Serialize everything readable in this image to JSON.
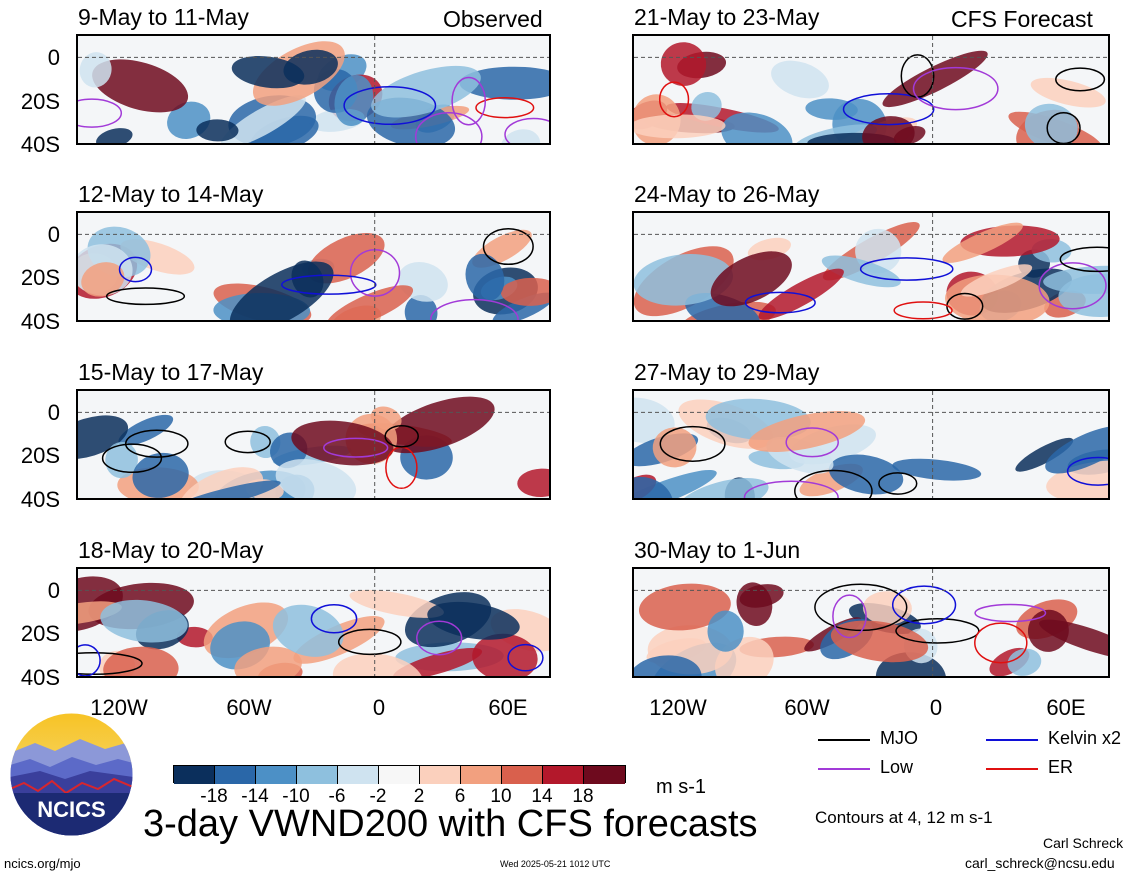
{
  "main_title": "3-day VWND200 with CFS forecasts",
  "observed_label": "Observed",
  "forecast_label": "CFS Forecast",
  "panels_left": [
    {
      "title": "9-May to 11-May"
    },
    {
      "title": "12-May to 14-May"
    },
    {
      "title": "15-May to 17-May"
    },
    {
      "title": "18-May to 20-May"
    }
  ],
  "panels_right": [
    {
      "title": "21-May to 23-May"
    },
    {
      "title": "24-May to 26-May"
    },
    {
      "title": "27-May to 29-May"
    },
    {
      "title": "30-May to 1-Jun"
    }
  ],
  "y_ticks": [
    "0",
    "20S",
    "40S"
  ],
  "x_ticks": [
    "120W",
    "60W",
    "0",
    "60E"
  ],
  "colorbar": {
    "unit": "m s-1",
    "labels": [
      "-18",
      "-14",
      "-10",
      "-6",
      "-2",
      "2",
      "6",
      "10",
      "14",
      "18"
    ],
    "colors": [
      "#0b2f5c",
      "#2a67a8",
      "#4c90c6",
      "#8ec0de",
      "#cfe3f0",
      "#f7f7f7",
      "#fbd0bd",
      "#f2a07f",
      "#d9604d",
      "#b3182b",
      "#6e0a1e"
    ]
  },
  "legend": {
    "items": [
      {
        "label": "MJO",
        "color": "#000000"
      },
      {
        "label": "Kelvin x2",
        "color": "#1010d8"
      },
      {
        "label": "Low",
        "color": "#a23ad8"
      },
      {
        "label": "ER",
        "color": "#e01010"
      }
    ],
    "contours_note": "Contours at 4, 12 m s-1"
  },
  "credits": {
    "author": "Carl Schreck",
    "email": "carl_schreck@ncsu.edu",
    "site": "ncics.org/mjo",
    "timestamp": "Wed 2025-05-21 1012 UTC",
    "logo_text": "NCICS"
  }
}
